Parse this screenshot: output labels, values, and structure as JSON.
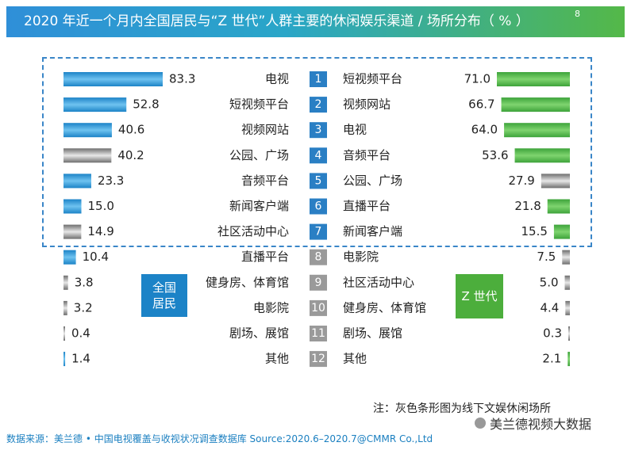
{
  "title": "2020 年近一个月内全国居民与“Z 世代”人群主要的休闲娱乐渠道 / 场所分布（ % ）",
  "title_superscript": "8",
  "legend_left": "全国\n居民",
  "legend_right": "Z 世代",
  "note": "注：灰色条形图为线下文娱休闲场所",
  "source": "数据来源：美兰德 • 中国电视覆盖与收视状况调查数据库 Source:2020.6–2020.7@CMMR Co.,Ltd",
  "watermark": "美兰德视频大数据",
  "colors": {
    "online_left": "#1c83c7",
    "online_right": "#3da33a",
    "offline": "#8c8c8c",
    "rank_box": "#2a7fc4"
  },
  "chart_data": [
    {
      "type": "bar",
      "orientation": "horizontal",
      "series_name": "全国居民",
      "categories": [
        "电视",
        "短视频平台",
        "视频网站",
        "公园、广场",
        "音频平台",
        "新闻客户端",
        "社区活动中心",
        "直播平台",
        "健身房、体育馆",
        "电影院",
        "剧场、展馆",
        "其他"
      ],
      "values": [
        83.3,
        52.8,
        40.6,
        40.2,
        23.3,
        15.0,
        14.9,
        10.4,
        3.8,
        3.2,
        0.4,
        1.4
      ],
      "labels": [
        "83.3",
        "52.8",
        "40.6",
        "40.2",
        "23.3",
        "15.0",
        "14.9",
        "10.4",
        "3.8",
        "3.2",
        "0.4",
        "1.4"
      ],
      "offline": [
        false,
        false,
        false,
        true,
        false,
        false,
        true,
        false,
        true,
        true,
        true,
        false
      ]
    },
    {
      "type": "bar",
      "orientation": "horizontal",
      "series_name": "Z 世代",
      "categories": [
        "短视频平台",
        "视频网站",
        "电视",
        "音频平台",
        "公园、广场",
        "直播平台",
        "新闻客户端",
        "电影院",
        "社区活动中心",
        "健身房、体育馆",
        "剧场、展馆",
        "其他"
      ],
      "values": [
        71.0,
        66.7,
        64.0,
        53.6,
        27.9,
        21.8,
        15.5,
        7.5,
        5.0,
        4.4,
        0.3,
        2.1
      ],
      "labels": [
        "71.0",
        "66.7",
        "64.0",
        "53.6",
        "27.9",
        "21.8",
        "15.5",
        "7.5",
        "5.0",
        "4.4",
        "0.3",
        "2.1"
      ],
      "offline": [
        false,
        false,
        false,
        false,
        true,
        false,
        false,
        true,
        true,
        true,
        true,
        false
      ]
    }
  ],
  "ranks": [
    "1",
    "2",
    "3",
    "4",
    "5",
    "6",
    "7",
    "8",
    "9",
    "10",
    "11",
    "12"
  ]
}
